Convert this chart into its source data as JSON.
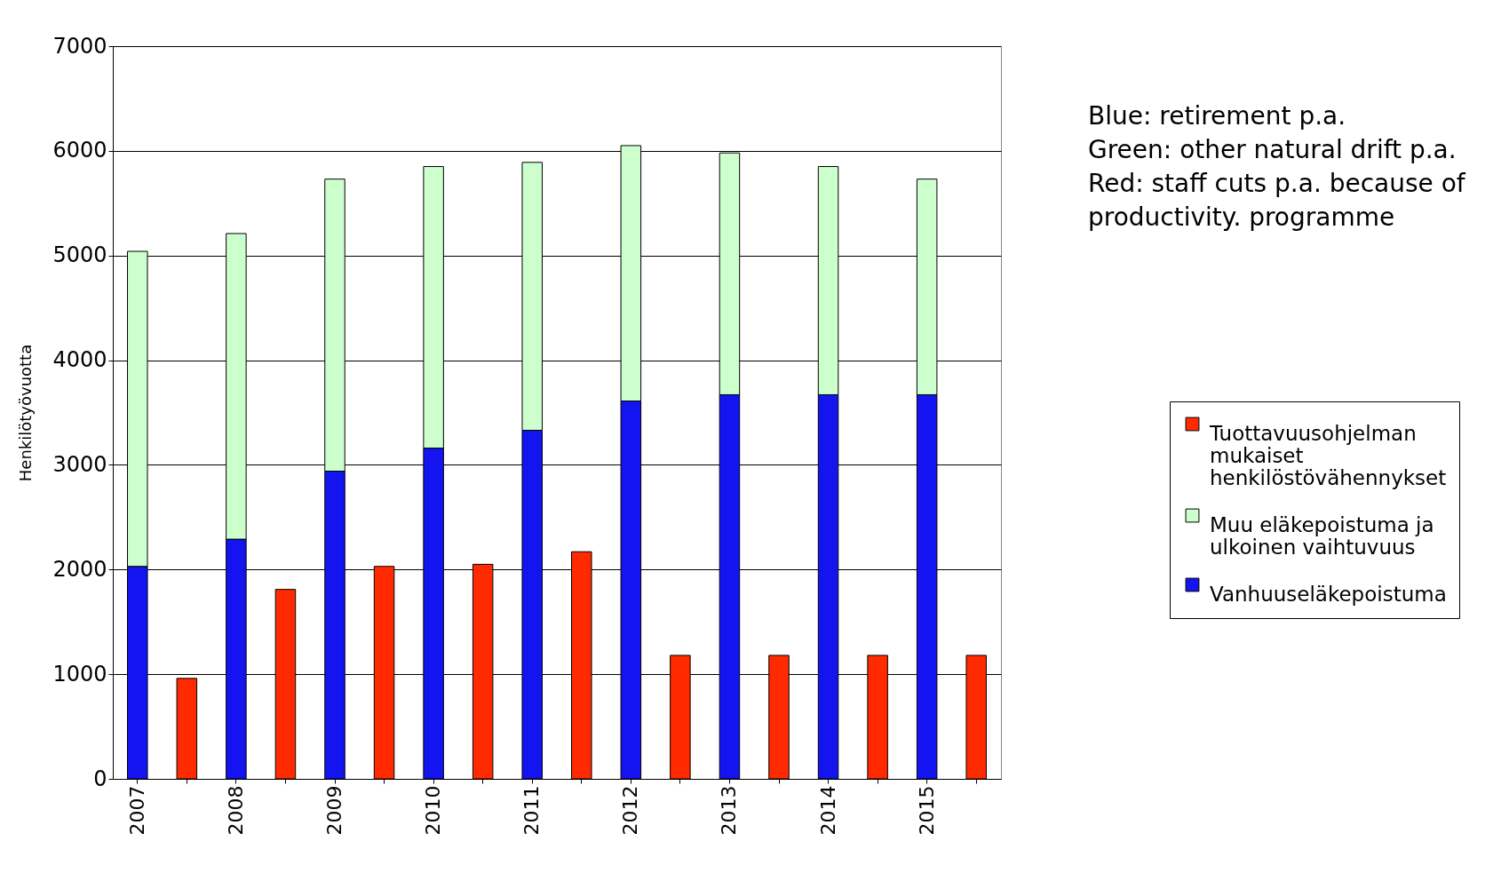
{
  "chart_data": {
    "type": "bar",
    "stacked": true,
    "ylabel": "Henkilötyövuotta",
    "categories": [
      "2007",
      null,
      "2008",
      null,
      "2009",
      null,
      "2010",
      null,
      "2011",
      null,
      "2012",
      null,
      "2013",
      null,
      "2014",
      null,
      "2015",
      null
    ],
    "series": [
      {
        "name": "Vanhuuseläkepoistuma",
        "color": "#1414f0",
        "values": [
          2030,
          null,
          2290,
          null,
          2940,
          null,
          3160,
          null,
          3330,
          null,
          3610,
          null,
          3670,
          null,
          3670,
          null,
          3670,
          null
        ]
      },
      {
        "name": "Muu eläkepoistuma ja ulkoinen vaihtuvuus",
        "color": "#ccffcc",
        "values": [
          3010,
          null,
          2920,
          null,
          2790,
          null,
          2690,
          null,
          2560,
          null,
          2440,
          null,
          2310,
          null,
          2180,
          null,
          2060,
          null
        ]
      },
      {
        "name": "Tuottavuusohjelman mukaiset henkilöstövähennykset",
        "color": "#ff2a00",
        "values": [
          null,
          960,
          null,
          1810,
          null,
          2030,
          null,
          2050,
          null,
          2170,
          null,
          1180,
          null,
          1180,
          null,
          1180,
          null,
          1180
        ]
      }
    ],
    "ylim": [
      0,
      7000
    ],
    "yticks": [
      0,
      1000,
      2000,
      3000,
      4000,
      5000,
      6000,
      7000
    ],
    "grid": "y",
    "legend": "right",
    "annotations": [
      "Blue: retirement p.a.",
      "Green: other natural drift p.a.",
      "Red: staff cuts p.a. because of productivity. programme"
    ]
  }
}
